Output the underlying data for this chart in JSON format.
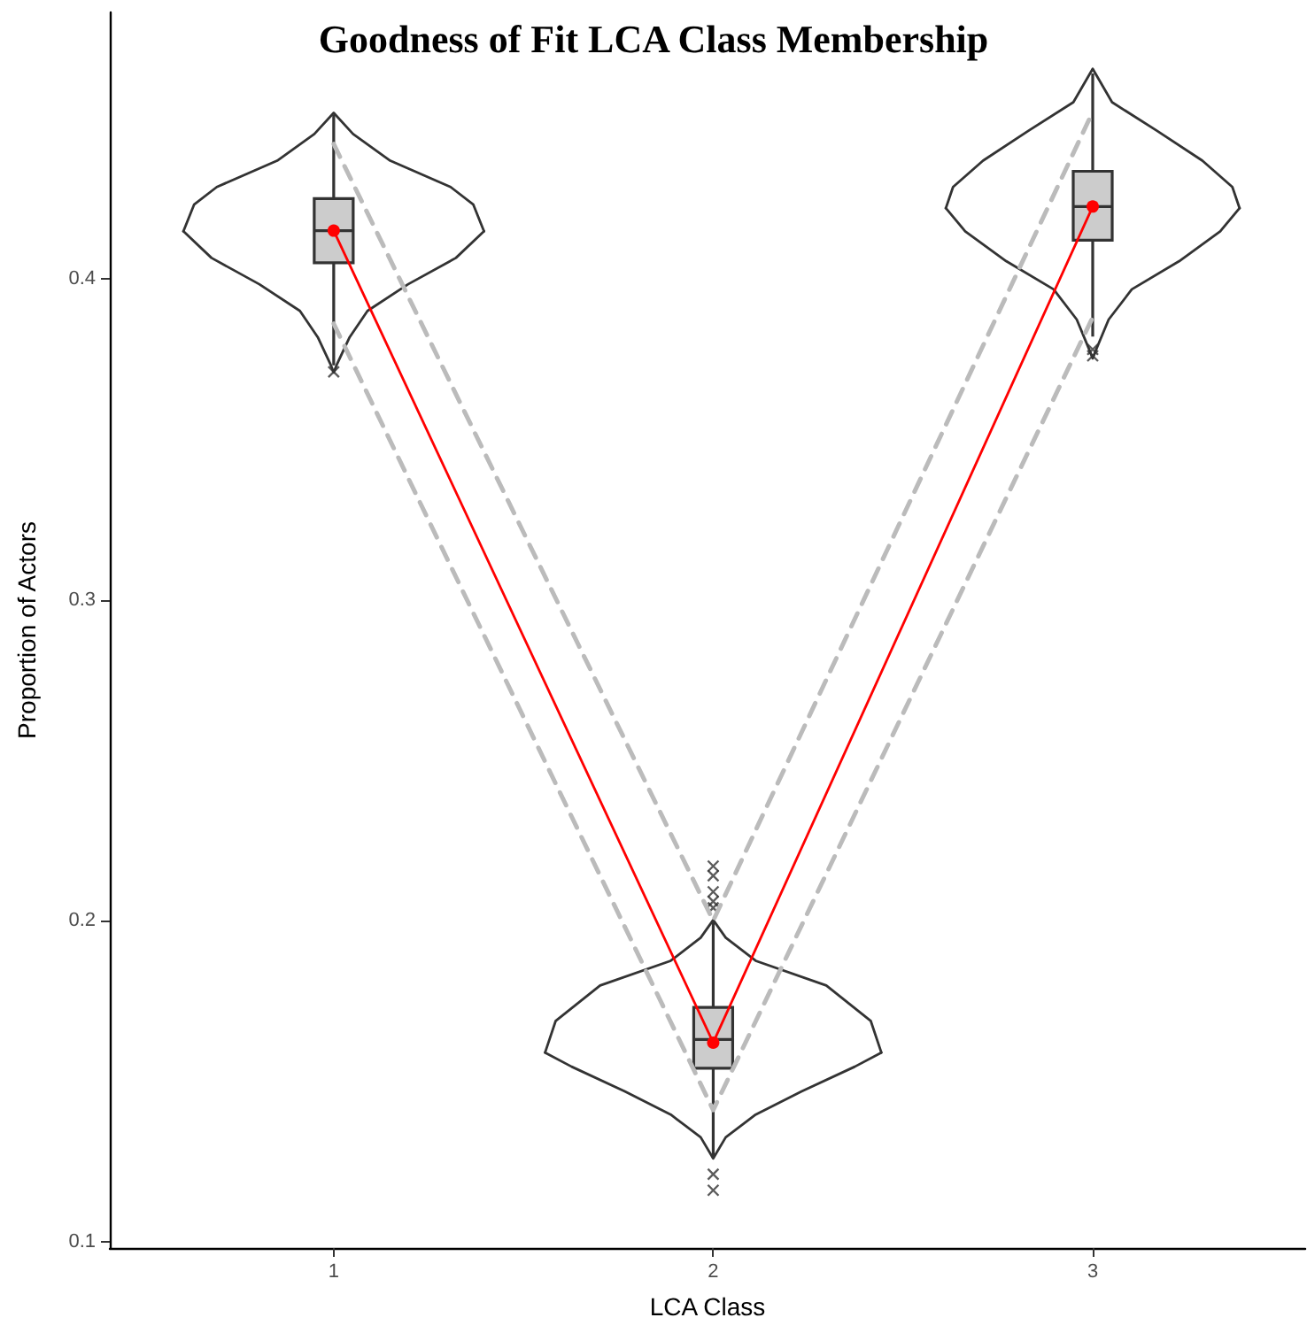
{
  "chart_data": {
    "type": "box",
    "title": "Goodness of Fit LCA Class Membership",
    "xlabel": "LCA Class",
    "ylabel": "Proportion of Actors",
    "x": [
      1,
      2,
      3
    ],
    "boxes": [
      {
        "low": 0.373,
        "q1": 0.405,
        "median": 0.415,
        "q3": 0.425,
        "high": 0.451,
        "outliers": [
          0.371
        ]
      },
      {
        "low": 0.126,
        "q1": 0.154,
        "median": 0.163,
        "q3": 0.173,
        "high": 0.2,
        "outliers": [
          0.204,
          0.206,
          0.209,
          0.214,
          0.217,
          0.121,
          0.116
        ]
      },
      {
        "low": 0.382,
        "q1": 0.412,
        "median": 0.4225,
        "q3": 0.4335,
        "high": 0.464,
        "outliers": [
          0.378,
          0.376
        ]
      }
    ],
    "series": [
      {
        "type": "line",
        "color": "#bbbbbb",
        "line_style": "dashed",
        "marker": "none",
        "values": [
          0.442,
          0.2,
          0.452
        ]
      },
      {
        "type": "line",
        "color": "#bbbbbb",
        "line_style": "dashed",
        "marker": "none",
        "values": [
          0.386,
          0.141,
          0.388
        ]
      },
      {
        "type": "line",
        "color": "#ff0000",
        "line_style": "solid",
        "marker": "circle",
        "values": [
          0.415,
          0.162,
          0.4225
        ]
      },
      {
        "type": "line",
        "color": "#333333",
        "line_style": "solid",
        "marker": "none",
        "x": [
          0.604,
          0.632,
          0.692,
          0.851,
          0.949,
          1,
          1.051,
          1.149,
          1.308,
          1.368,
          1.396
        ],
        "values": [
          0.4148,
          0.4231,
          0.4286,
          0.4368,
          0.4451,
          0.4517,
          0.4451,
          0.4368,
          0.4286,
          0.4231,
          0.4148
        ]
      },
      {
        "type": "line",
        "color": "#333333",
        "line_style": "solid",
        "marker": "none",
        "x": [
          0.604,
          0.678,
          0.804,
          0.911,
          0.958,
          0.991,
          1,
          1.009,
          1.042,
          1.089,
          1.196,
          1.322,
          1.396
        ],
        "values": [
          0.4148,
          0.4065,
          0.3983,
          0.39,
          0.3818,
          0.3735,
          0.3708,
          0.3735,
          0.3818,
          0.39,
          0.3983,
          0.4065,
          0.4148
        ]
      },
      {
        "type": "line",
        "color": "#333333",
        "line_style": "solid",
        "marker": "none",
        "x": [
          1.557,
          1.585,
          1.702,
          1.888,
          1.967,
          2,
          2.033,
          2.112,
          2.298,
          2.415,
          2.443
        ],
        "values": [
          0.1589,
          0.1688,
          0.1798,
          0.1875,
          0.1947,
          0.2002,
          0.1947,
          0.1875,
          0.1798,
          0.1688,
          0.1589
        ]
      },
      {
        "type": "line",
        "color": "#333333",
        "line_style": "solid",
        "marker": "none",
        "x": [
          1.557,
          1.627,
          1.767,
          1.888,
          1.967,
          2,
          2.033,
          2.112,
          2.233,
          2.373,
          2.443
        ],
        "values": [
          0.1589,
          0.1545,
          0.1468,
          0.1396,
          0.1325,
          0.1259,
          0.1325,
          0.1396,
          0.1468,
          0.1545,
          0.1589
        ]
      },
      {
        "type": "line",
        "color": "#333333",
        "line_style": "solid",
        "marker": "none",
        "x": [
          2.613,
          2.632,
          2.711,
          2.832,
          2.949,
          3,
          3.051,
          3.168,
          3.289,
          3.368,
          3.387
        ],
        "values": [
          0.422,
          0.4286,
          0.4368,
          0.4462,
          0.455,
          0.4654,
          0.455,
          0.4462,
          0.4368,
          0.4286,
          0.422
        ]
      },
      {
        "type": "line",
        "color": "#333333",
        "line_style": "solid",
        "marker": "none",
        "x": [
          2.613,
          2.664,
          2.772,
          2.897,
          2.958,
          2.991,
          3,
          3.009,
          3.042,
          3.103,
          3.228,
          3.336,
          3.387
        ],
        "values": [
          0.422,
          0.4148,
          0.4055,
          0.3967,
          0.3873,
          0.3779,
          0.3752,
          0.3779,
          0.3873,
          0.3967,
          0.4055,
          0.4148,
          0.422
        ]
      }
    ],
    "xlim": [
      0.41,
      3.56
    ],
    "xticks": [
      1,
      2,
      3
    ],
    "ylim": [
      0.098,
      0.483
    ],
    "yticks": [
      0.1,
      0.2,
      0.3,
      0.4
    ],
    "grid": false
  }
}
